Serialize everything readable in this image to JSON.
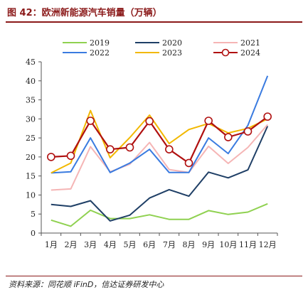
{
  "title": "图 42：欧洲新能源汽车销量（万辆）",
  "source": "资料来源：同花顺 iFinD，信达证券研发中心",
  "chart_data": {
    "type": "line",
    "title": "图 42：欧洲新能源汽车销量（万辆）",
    "xlabel": "",
    "ylabel": "",
    "categories": [
      "1月",
      "2月",
      "3月",
      "4月",
      "5月",
      "6月",
      "7月",
      "8月",
      "9月",
      "10月",
      "11月",
      "12月"
    ],
    "ylim": [
      0,
      45
    ],
    "yticks": [
      0,
      5,
      10,
      15,
      20,
      25,
      30,
      35,
      40,
      45
    ],
    "grid": false,
    "legend_position": "top",
    "series": [
      {
        "name": "2019",
        "color": "#8fd150",
        "marker": "none",
        "values": [
          3.4,
          1.8,
          6.0,
          3.8,
          3.8,
          4.8,
          3.6,
          3.6,
          5.9,
          4.9,
          5.5,
          7.7
        ]
      },
      {
        "name": "2020",
        "color": "#1f3f66",
        "marker": "none",
        "values": [
          7.5,
          7.0,
          8.5,
          3.2,
          4.7,
          9.2,
          11.4,
          9.7,
          16.0,
          14.5,
          16.6,
          28.1
        ]
      },
      {
        "name": "2021",
        "color": "#f5b5b5",
        "marker": "none",
        "values": [
          11.3,
          11.6,
          22.7,
          16.1,
          18.1,
          23.8,
          16.7,
          15.9,
          22.8,
          18.3,
          22.5,
          28.5
        ]
      },
      {
        "name": "2022",
        "color": "#3a7be0",
        "marker": "none",
        "values": [
          15.8,
          16.1,
          25.0,
          15.9,
          18.4,
          22.0,
          15.9,
          15.9,
          25.0,
          20.9,
          28.3,
          41.3
        ]
      },
      {
        "name": "2023",
        "color": "#f2b800",
        "marker": "none",
        "values": [
          15.8,
          18.4,
          32.2,
          19.8,
          25.1,
          31.0,
          23.5,
          27.2,
          28.8,
          26.3,
          27.5,
          30.0
        ]
      },
      {
        "name": "2024",
        "color": "#b01010",
        "marker": "circle",
        "values": [
          20.0,
          20.3,
          29.5,
          22.0,
          22.5,
          29.4,
          22.0,
          18.4,
          29.5,
          25.2,
          26.7,
          30.6
        ]
      }
    ]
  }
}
